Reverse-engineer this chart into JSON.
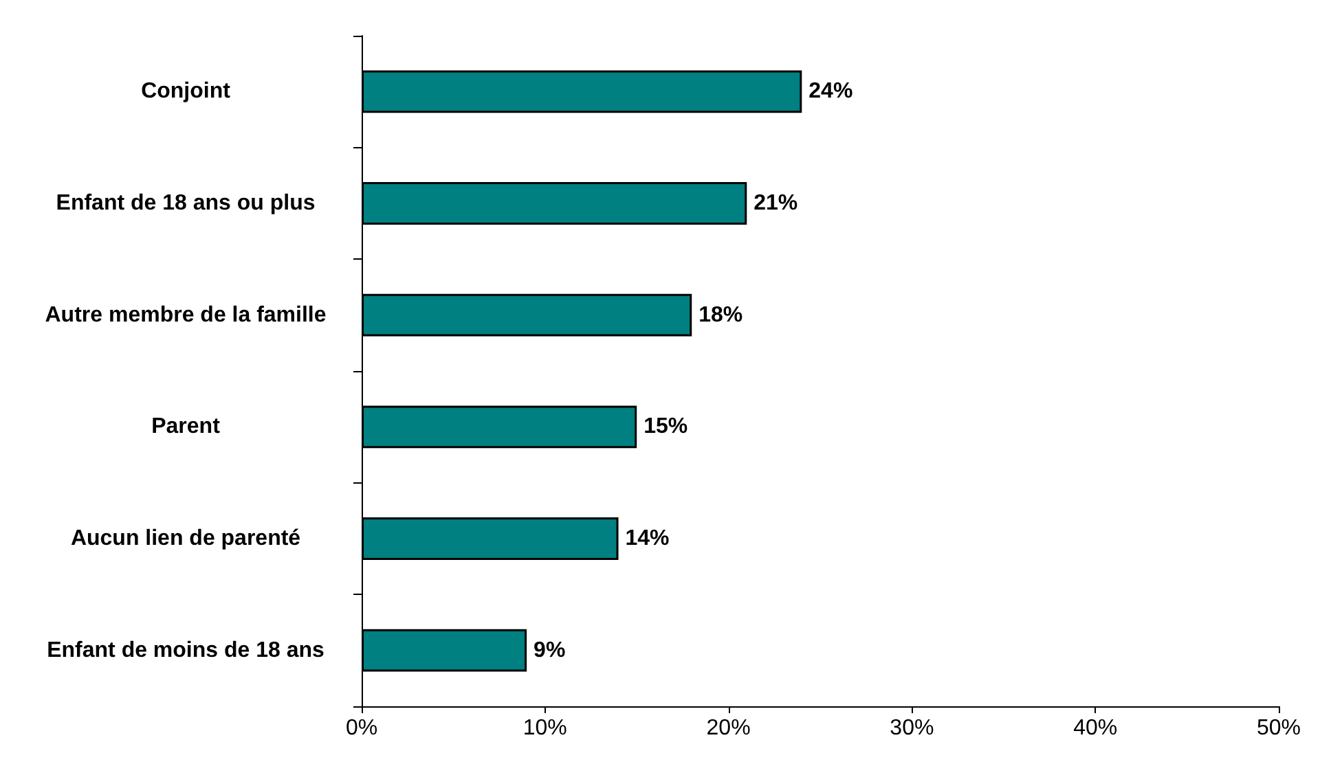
{
  "chart_data": {
    "type": "bar",
    "orientation": "horizontal",
    "categories": [
      "Conjoint",
      "Enfant de 18 ans ou plus",
      "Autre membre de la famille",
      "Parent",
      "Aucun lien de parenté",
      "Enfant de moins de 18 ans"
    ],
    "series": [
      {
        "color": "#008080",
        "values": [
          24,
          21,
          18,
          15,
          14,
          9
        ],
        "value_labels": [
          "24%",
          "21%",
          "18%",
          "15%",
          "14%",
          "9%"
        ]
      }
    ],
    "xlim": [
      0,
      50
    ],
    "xticks": [
      {
        "value": 0,
        "label": "0%"
      },
      {
        "value": 10,
        "label": "10%"
      },
      {
        "value": 20,
        "label": "20%"
      },
      {
        "value": 30,
        "label": "30%"
      },
      {
        "value": 40,
        "label": "40%"
      },
      {
        "value": 50,
        "label": "50%"
      }
    ],
    "grid": false
  }
}
